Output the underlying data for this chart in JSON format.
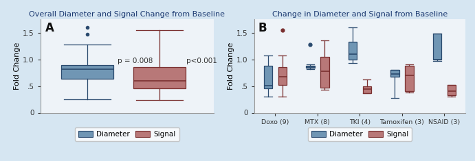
{
  "panel_a_title": "Overall Diameter and Signal Change from Baseline",
  "panel_b_title": "Change in Diameter and Signal from Baseline",
  "ylabel": "Fold Change",
  "bg_color": "#d6e6f2",
  "plot_bg_color": "#eef3f8",
  "blue_color": "#7096b4",
  "red_color": "#b87878",
  "blue_edge": "#2a4a6e",
  "red_edge": "#7a3030",
  "title_color": "#1a3870",
  "panel_a": {
    "diameter": {
      "whislo": 0.25,
      "q1": 0.63,
      "med": 0.82,
      "q3": 0.89,
      "whishi": 1.28,
      "fliers_above": [
        1.47,
        1.6
      ],
      "fliers_below": []
    },
    "signal": {
      "whislo": 0.24,
      "q1": 0.46,
      "med": 0.6,
      "q3": 0.86,
      "whishi": 1.55,
      "fliers_above": [],
      "fliers_below": []
    },
    "p_diameter": "p = 0.008",
    "p_signal": "p<0.001"
  },
  "panel_b": {
    "groups": [
      "Doxo (9)",
      "MTX (8)",
      "TKI (4)",
      "Tamoxifen (3)",
      "NSAID (3)"
    ],
    "diameter": [
      {
        "whislo": 0.3,
        "q1": 0.46,
        "med": 0.51,
        "q3": 0.88,
        "whishi": 1.07,
        "fliers": []
      },
      {
        "whislo": 0.82,
        "q1": 0.84,
        "med": 0.86,
        "q3": 0.88,
        "whishi": 0.9,
        "fliers": [
          1.28
        ]
      },
      {
        "whislo": 0.93,
        "q1": 1.0,
        "med": 1.1,
        "q3": 1.33,
        "whishi": 1.6,
        "fliers": []
      },
      {
        "whislo": 0.27,
        "q1": 0.68,
        "med": 0.73,
        "q3": 0.8,
        "whishi": 0.8,
        "fliers": []
      },
      {
        "whislo": 0.97,
        "q1": 1.0,
        "med": 1.0,
        "q3": 1.48,
        "whishi": 1.48,
        "fliers": []
      }
    ],
    "signal": [
      {
        "whislo": 0.3,
        "q1": 0.52,
        "med": 0.68,
        "q3": 0.85,
        "whishi": 1.07,
        "fliers": [
          1.55
        ]
      },
      {
        "whislo": 0.43,
        "q1": 0.47,
        "med": 0.78,
        "q3": 1.05,
        "whishi": 1.35,
        "fliers": []
      },
      {
        "whislo": 0.36,
        "q1": 0.36,
        "med": 0.44,
        "q3": 0.5,
        "whishi": 0.62,
        "fliers": []
      },
      {
        "whislo": 0.38,
        "q1": 0.4,
        "med": 0.7,
        "q3": 0.88,
        "whishi": 0.9,
        "fliers": []
      },
      {
        "whislo": 0.3,
        "q1": 0.33,
        "med": 0.4,
        "q3": 0.52,
        "whishi": 0.52,
        "fliers": []
      }
    ]
  }
}
